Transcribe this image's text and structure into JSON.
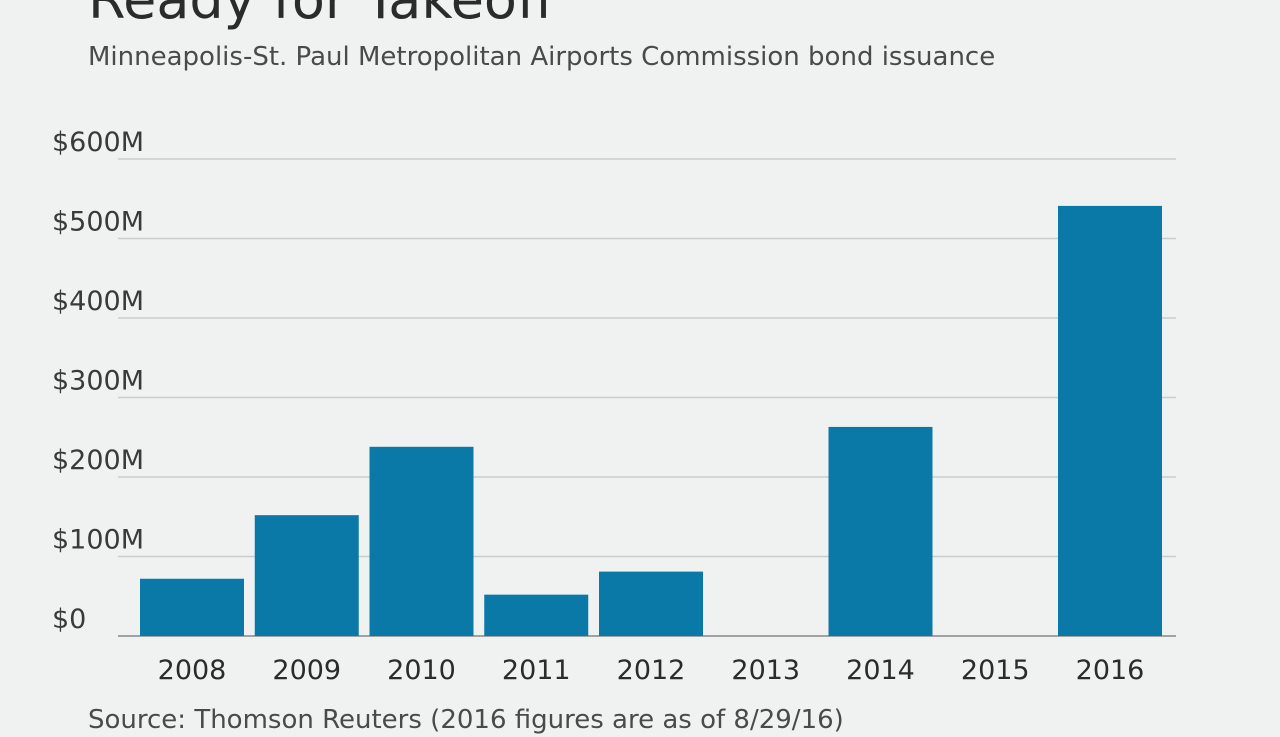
{
  "chart_data": {
    "type": "bar",
    "title": "Ready for Takeoff",
    "subtitle": "Minneapolis-St. Paul Metropolitan Airports Commission bond issuance",
    "source": "Source: Thomson Reuters (2016 figures are as of 8/29/16)",
    "categories": [
      "2008",
      "2009",
      "2010",
      "2011",
      "2012",
      "2013",
      "2014",
      "2015",
      "2016"
    ],
    "values": [
      72,
      152,
      238,
      52,
      81,
      0,
      263,
      0,
      541
    ],
    "unit": "$M",
    "ylim": [
      0,
      600
    ],
    "yticks": [
      {
        "value": 0,
        "label": "$0"
      },
      {
        "value": 100,
        "label": "$100M"
      },
      {
        "value": 200,
        "label": "$200M"
      },
      {
        "value": 300,
        "label": "$300M"
      },
      {
        "value": 400,
        "label": "$400M"
      },
      {
        "value": 500,
        "label": "$500M"
      },
      {
        "value": 600,
        "label": "$600M"
      }
    ],
    "grid": true,
    "bar_color": "#0b79a8",
    "grid_color": "#c9cccd"
  }
}
